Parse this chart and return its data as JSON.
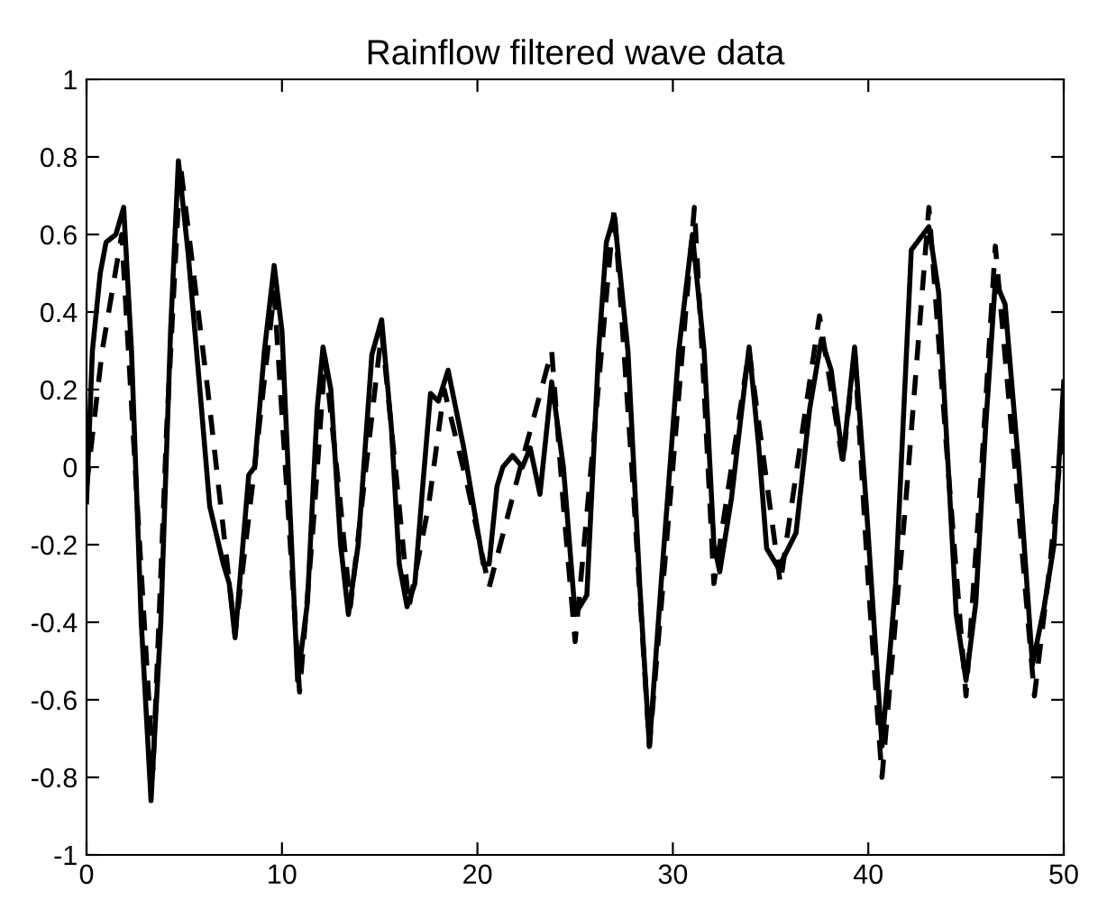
{
  "chart_data": {
    "type": "line",
    "title": "Rainflow filtered wave data",
    "xlim": [
      0,
      50
    ],
    "ylim": [
      -1,
      1
    ],
    "xticks": [
      0,
      10,
      20,
      30,
      40,
      50
    ],
    "yticks": [
      -1,
      -0.8,
      -0.6,
      -0.4,
      -0.2,
      0,
      0.2,
      0.4,
      0.6,
      0.8,
      1
    ],
    "grid": false,
    "legend": false,
    "marker": "none",
    "series": [
      {
        "color": "#000000",
        "line_style": "solid",
        "x": [
          0,
          0.3,
          0.7,
          1.0,
          1.5,
          1.9,
          2.3,
          2.8,
          3.3,
          3.8,
          4.3,
          4.7,
          5.2,
          5.8,
          6.3,
          7.0,
          7.3,
          7.6,
          8.0,
          8.3,
          8.6,
          9.1,
          9.6,
          10.0,
          10.4,
          10.8,
          11.3,
          11.8,
          12.1,
          12.5,
          13.0,
          13.4,
          13.9,
          14.6,
          15.1,
          15.6,
          16.0,
          16.4,
          16.8,
          17.2,
          17.6,
          18.0,
          18.5,
          18.9,
          19.3,
          19.8,
          20.3,
          20.6,
          21.0,
          21.3,
          21.8,
          22.3,
          22.7,
          23.2,
          23.8,
          24.4,
          25.0,
          25.6,
          26.2,
          26.6,
          27.0,
          27.7,
          28.3,
          28.8,
          29.4,
          30.3,
          31.0,
          31.6,
          32.1,
          32.4,
          33.0,
          33.9,
          34.4,
          34.8,
          35.4,
          36.3,
          37.0,
          37.6,
          38.1,
          38.7,
          39.3,
          39.9,
          40.7,
          41.4,
          42.2,
          43.1,
          43.6,
          44.5,
          45.0,
          45.5,
          46.0,
          46.5,
          47.0,
          47.7,
          48.4,
          49.0,
          49.5,
          50.0
        ],
        "values": [
          -0.09,
          0.3,
          0.5,
          0.58,
          0.6,
          0.67,
          0.3,
          -0.4,
          -0.86,
          -0.4,
          0.35,
          0.79,
          0.55,
          0.2,
          -0.1,
          -0.25,
          -0.3,
          -0.44,
          -0.2,
          -0.02,
          0.0,
          0.3,
          0.52,
          0.35,
          -0.1,
          -0.55,
          -0.35,
          0.15,
          0.31,
          0.2,
          -0.2,
          -0.38,
          -0.2,
          0.29,
          0.38,
          0.1,
          -0.25,
          -0.36,
          -0.3,
          -0.05,
          0.19,
          0.17,
          0.25,
          0.15,
          0.05,
          -0.1,
          -0.25,
          -0.25,
          -0.05,
          0.0,
          0.03,
          0.0,
          0.05,
          -0.07,
          0.22,
          0.0,
          -0.38,
          -0.33,
          0.3,
          0.58,
          0.65,
          0.3,
          -0.3,
          -0.72,
          -0.3,
          0.3,
          0.6,
          0.3,
          -0.2,
          -0.27,
          -0.08,
          0.31,
          0.05,
          -0.21,
          -0.26,
          -0.17,
          0.15,
          0.33,
          0.25,
          0.02,
          0.31,
          -0.1,
          -0.72,
          -0.3,
          0.56,
          0.62,
          0.45,
          -0.38,
          -0.55,
          -0.35,
          0.1,
          0.48,
          0.42,
          0.0,
          -0.51,
          -0.36,
          -0.2,
          0.22
        ]
      },
      {
        "color": "#000000",
        "line_style": "dashed",
        "x": [
          0,
          0.8,
          1.8,
          2.6,
          3.4,
          4.1,
          4.8,
          6.2,
          7.6,
          8.6,
          9.6,
          10.3,
          10.9,
          11.6,
          12.2,
          12.9,
          13.5,
          14.3,
          15.1,
          15.8,
          16.5,
          17.5,
          18.3,
          19.5,
          20.6,
          22.2,
          23.8,
          24.4,
          25.0,
          26.0,
          27.0,
          27.9,
          28.8,
          30.0,
          31.1,
          31.6,
          32.1,
          33.0,
          33.9,
          34.7,
          35.5,
          36.5,
          37.5,
          38.1,
          38.7,
          39.3,
          40.0,
          40.7,
          41.9,
          43.1,
          44.0,
          45.0,
          45.8,
          46.5,
          47.5,
          48.5,
          49.3,
          50.0
        ],
        "values": [
          -0.05,
          0.3,
          0.6,
          -0.1,
          -0.78,
          0.1,
          0.78,
          0.2,
          -0.43,
          0.0,
          0.45,
          -0.1,
          -0.58,
          -0.15,
          0.28,
          -0.05,
          -0.36,
          0.0,
          0.35,
          0.0,
          -0.36,
          -0.1,
          0.2,
          -0.05,
          -0.31,
          0.0,
          0.3,
          -0.1,
          -0.45,
          0.1,
          0.67,
          0.0,
          -0.72,
          0.0,
          0.67,
          0.2,
          -0.3,
          0.0,
          0.3,
          0.0,
          -0.3,
          0.05,
          0.39,
          0.2,
          0.01,
          0.3,
          -0.3,
          -0.8,
          -0.1,
          0.67,
          0.05,
          -0.59,
          0.0,
          0.57,
          0.0,
          -0.59,
          -0.25,
          0.12
        ]
      }
    ]
  }
}
